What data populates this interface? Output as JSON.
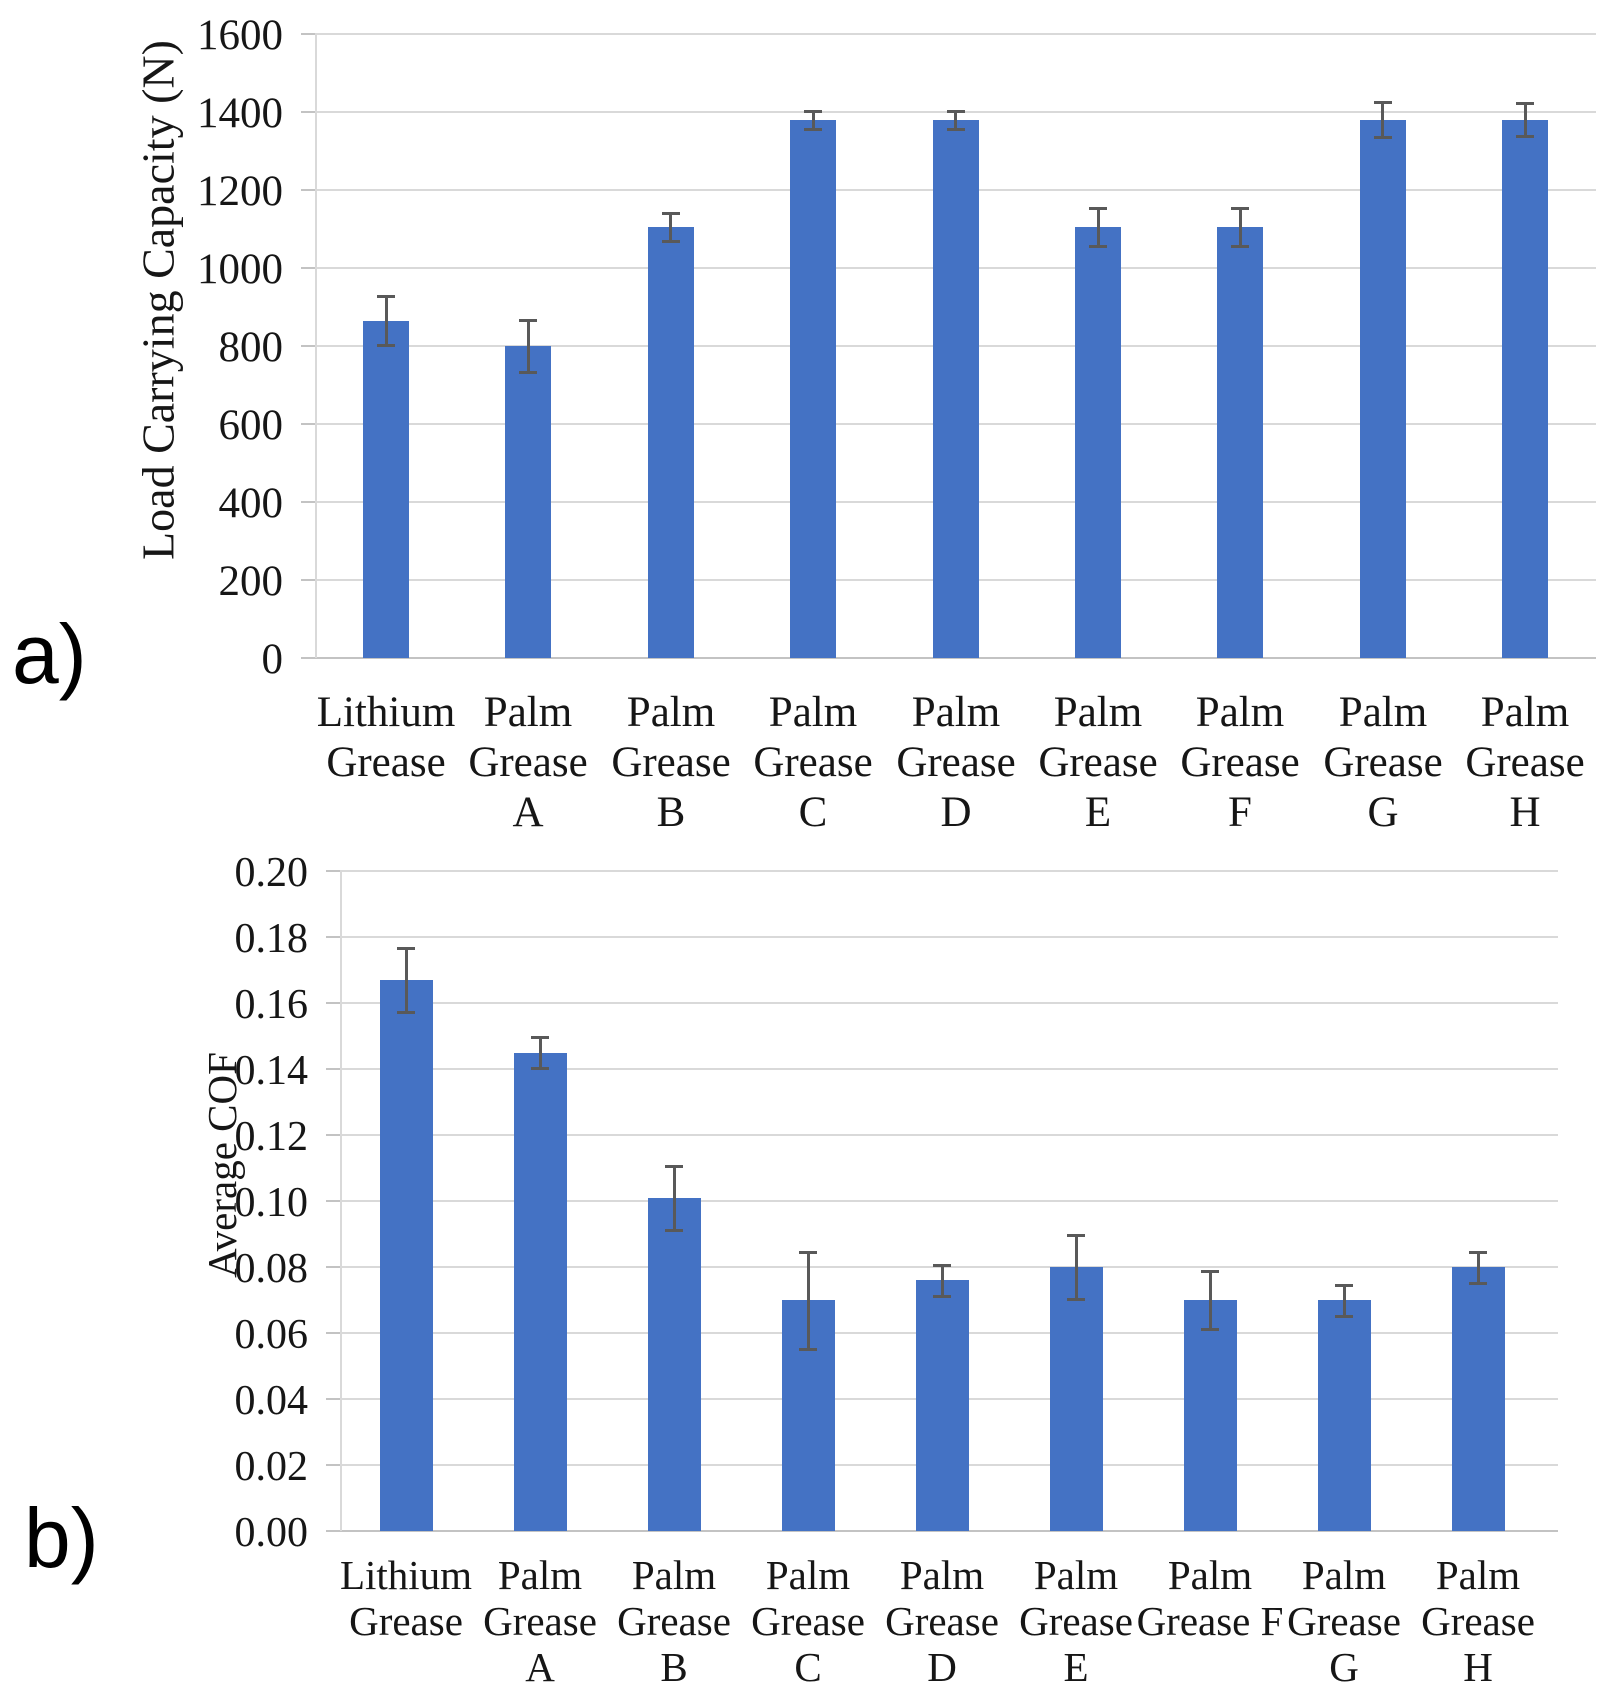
{
  "panel_labels": [
    "a)",
    "b)"
  ],
  "chart_data": [
    {
      "panel": "a",
      "type": "bar",
      "title": "",
      "categories": [
        "Lithium Grease",
        "Palm Grease A",
        "Palm Grease B",
        "Palm Grease C",
        "Palm Grease D",
        "Palm Grease E",
        "Palm Grease F",
        "Palm Grease G",
        "Palm Grease H"
      ],
      "category_label_lines": [
        [
          "Lithium",
          "Grease"
        ],
        [
          "Palm",
          "Grease",
          "A"
        ],
        [
          "Palm",
          "Grease",
          "B"
        ],
        [
          "Palm",
          "Grease",
          "C"
        ],
        [
          "Palm",
          "Grease",
          "D"
        ],
        [
          "Palm",
          "Grease",
          "E"
        ],
        [
          "Palm",
          "Grease",
          "F"
        ],
        [
          "Palm",
          "Grease",
          "G"
        ],
        [
          "Palm",
          "Grease",
          "H"
        ]
      ],
      "values": [
        865,
        800,
        1105,
        1380,
        1380,
        1105,
        1105,
        1380,
        1380
      ],
      "error_bars": [
        65,
        70,
        38,
        25,
        25,
        52,
        52,
        47,
        45
      ],
      "xlabel": "",
      "ylabel": "Load Carrying Capacity (N)",
      "ylim": [
        0,
        1600
      ],
      "ytick_step": 200,
      "ytick_decimals": 0,
      "ytick_labels": [
        "0",
        "200",
        "400",
        "600",
        "800",
        "1000",
        "1200",
        "1400",
        "1600"
      ],
      "grid": true,
      "legend": "none",
      "bar_color": "#4472C4",
      "error_bar_color": "#595959",
      "gridline_color": "#D9D9D9"
    },
    {
      "panel": "b",
      "type": "bar",
      "title": "",
      "categories": [
        "Lithium Grease",
        "Palm Grease A",
        "Palm Grease B",
        "Palm Grease C",
        "Palm Grease D",
        "Palm Grease E",
        "Palm Grease F",
        "Palm Grease G",
        "Palm Grease H"
      ],
      "category_label_lines": [
        [
          "Lithium",
          "Grease"
        ],
        [
          "Palm",
          "Grease",
          "A"
        ],
        [
          "Palm",
          "Grease",
          "B"
        ],
        [
          "Palm",
          "Grease",
          "C"
        ],
        [
          "Palm",
          "Grease",
          "D"
        ],
        [
          "Palm",
          "Grease",
          "E"
        ],
        [
          "Palm",
          "Grease F"
        ],
        [
          "Palm",
          "Grease",
          "G"
        ],
        [
          "Palm",
          "Grease",
          "H"
        ]
      ],
      "values": [
        0.167,
        0.145,
        0.101,
        0.07,
        0.076,
        0.08,
        0.07,
        0.07,
        0.08
      ],
      "error_bars": [
        0.01,
        0.005,
        0.01,
        0.015,
        0.005,
        0.01,
        0.009,
        0.005,
        0.005
      ],
      "xlabel": "",
      "ylabel": "Average COF",
      "ylim": [
        0,
        0.2
      ],
      "ytick_step": 0.02,
      "ytick_decimals": 2,
      "ytick_labels": [
        "0.00",
        "0.02",
        "0.04",
        "0.06",
        "0.08",
        "0.10",
        "0.12",
        "0.14",
        "0.16",
        "0.18",
        "0.20"
      ],
      "grid": true,
      "legend": "none",
      "bar_color": "#4472C4",
      "error_bar_color": "#595959",
      "gridline_color": "#D9D9D9"
    }
  ]
}
